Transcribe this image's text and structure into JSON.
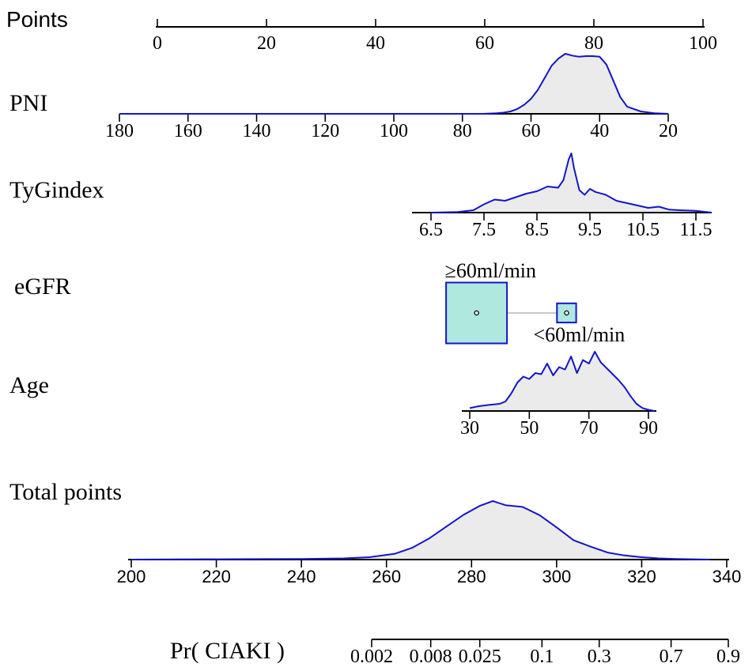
{
  "chart_data": {
    "type": "nomogram",
    "title": "",
    "colors": {
      "axis": "#000000",
      "density_line": "#1515c8",
      "density_fill": "#ebebeb",
      "box_fill": "#aee8df",
      "box_border": "#1515c8",
      "connector": "#c8c8c8"
    },
    "rows": [
      {
        "name": "Points",
        "ticks": [
          "0",
          "20",
          "40",
          "60",
          "80",
          "100"
        ],
        "tick_values": [
          0,
          20,
          40,
          60,
          80,
          100
        ],
        "points_range": [
          0,
          100
        ]
      },
      {
        "name": "PNI",
        "ticks": [
          "180",
          "160",
          "140",
          "120",
          "100",
          "80",
          "60",
          "40",
          "20"
        ],
        "tick_values": [
          180,
          160,
          140,
          120,
          100,
          80,
          60,
          40,
          20
        ],
        "density": {
          "x": [
            20,
            24,
            28,
            32,
            34,
            36,
            38,
            40,
            42,
            44,
            46,
            48,
            50,
            52,
            54,
            56,
            58,
            60,
            62,
            64,
            66,
            68,
            70,
            74,
            80,
            100,
            140,
            180
          ],
          "y": [
            0,
            0.01,
            0.04,
            0.12,
            0.28,
            0.55,
            0.82,
            0.95,
            0.96,
            0.96,
            0.95,
            0.97,
            1.0,
            0.92,
            0.8,
            0.6,
            0.4,
            0.25,
            0.15,
            0.08,
            0.04,
            0.02,
            0.01,
            0,
            0,
            0,
            0,
            0
          ]
        }
      },
      {
        "name": "TyGindex",
        "ticks": [
          "6.5",
          "7.5",
          "8.5",
          "9.5",
          "10.5",
          "11.5"
        ],
        "tick_values": [
          6.5,
          7.5,
          8.5,
          9.5,
          10.5,
          11.5
        ],
        "density": {
          "x": [
            6.5,
            7.0,
            7.3,
            7.5,
            7.7,
            7.9,
            8.1,
            8.3,
            8.5,
            8.7,
            8.9,
            9.0,
            9.1,
            9.15,
            9.2,
            9.3,
            9.4,
            9.5,
            9.6,
            9.8,
            10.0,
            10.2,
            10.4,
            10.6,
            10.8,
            11.0,
            11.2,
            11.5,
            11.8
          ],
          "y": [
            0,
            0.01,
            0.04,
            0.14,
            0.22,
            0.2,
            0.26,
            0.32,
            0.36,
            0.44,
            0.42,
            0.55,
            0.9,
            1.0,
            0.75,
            0.38,
            0.3,
            0.4,
            0.35,
            0.3,
            0.2,
            0.16,
            0.12,
            0.08,
            0.1,
            0.05,
            0.04,
            0.03,
            0
          ]
        }
      },
      {
        "name": "eGFR",
        "categories": [
          {
            "label": "≥60ml/min",
            "value": "≥60ml/min",
            "points": 58.5,
            "weight": 1.0
          },
          {
            "label": "<60ml/min",
            "value": "<60ml/min",
            "points": 75.0,
            "weight": 0.1
          }
        ]
      },
      {
        "name": "Age",
        "ticks": [
          "30",
          "50",
          "70",
          "90"
        ],
        "tick_values": [
          30,
          50,
          70,
          90
        ],
        "density": {
          "x": [
            30,
            33,
            36,
            40,
            42,
            44,
            46,
            48,
            50,
            52,
            54,
            56,
            58,
            60,
            62,
            64,
            66,
            68,
            70,
            72,
            74,
            76,
            78,
            80,
            82,
            84,
            86,
            88,
            90,
            92
          ],
          "y": [
            0.05,
            0.08,
            0.1,
            0.12,
            0.16,
            0.3,
            0.48,
            0.58,
            0.54,
            0.64,
            0.62,
            0.8,
            0.6,
            0.74,
            0.7,
            0.92,
            0.64,
            0.86,
            0.8,
            1.0,
            0.82,
            0.72,
            0.62,
            0.52,
            0.4,
            0.25,
            0.12,
            0.05,
            0.02,
            0
          ]
        }
      },
      {
        "name": "Total points",
        "ticks": [
          "200",
          "220",
          "240",
          "260",
          "280",
          "300",
          "320",
          "340"
        ],
        "tick_values": [
          200,
          220,
          240,
          260,
          280,
          300,
          320,
          340
        ],
        "density": {
          "x": [
            200,
            210,
            220,
            230,
            240,
            250,
            256,
            262,
            266,
            270,
            274,
            278,
            282,
            285,
            288,
            292,
            296,
            300,
            304,
            308,
            312,
            316,
            320,
            324,
            328,
            336
          ],
          "y": [
            0,
            0.004,
            0.006,
            0.008,
            0.01,
            0.02,
            0.04,
            0.1,
            0.2,
            0.36,
            0.56,
            0.76,
            0.92,
            1.0,
            0.93,
            0.9,
            0.76,
            0.55,
            0.33,
            0.22,
            0.12,
            0.07,
            0.04,
            0.02,
            0.01,
            0
          ]
        }
      },
      {
        "name": "Pr( CIAKI )",
        "ticks": [
          "0.002",
          "0.008",
          "0.025",
          "0.1",
          "0.3",
          "0.7",
          "0.9"
        ],
        "tick_values": [
          0.002,
          0.008,
          0.025,
          0.1,
          0.3,
          0.7,
          0.9
        ],
        "scale": "logit"
      }
    ]
  }
}
